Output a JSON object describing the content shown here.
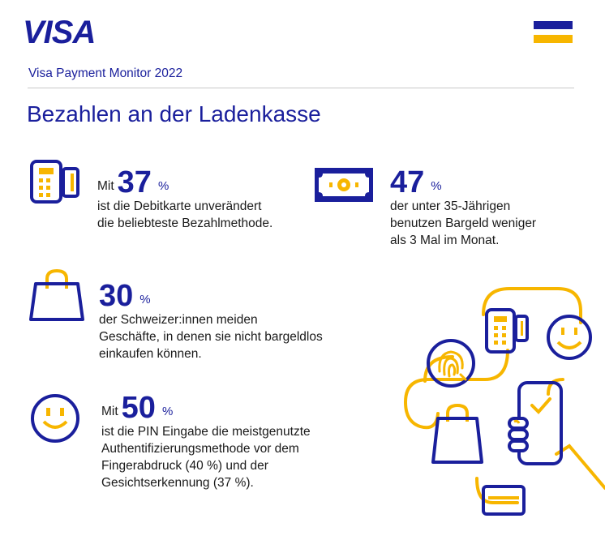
{
  "brand": {
    "logo_text": "VISA",
    "colors": {
      "blue": "#1a1f9c",
      "yellow": "#f7b600",
      "text": "#1a1a1a"
    }
  },
  "header": {
    "subtitle": "Visa Payment Monitor 2022",
    "title": "Bezahlen an der Ladenkasse"
  },
  "stats": [
    {
      "icon": "card-terminal-icon",
      "prefix": "Mit",
      "value": "37",
      "unit": "%",
      "lines": [
        "ist die Debitkarte unverändert",
        "die beliebteste Bezahlmethode."
      ]
    },
    {
      "icon": "cash-banknote-icon",
      "prefix": "",
      "value": "47",
      "unit": "%",
      "lines": [
        "der unter 35-Jährigen",
        "benutzen Bargeld weniger",
        "als 3 Mal im Monat."
      ]
    },
    {
      "icon": "shopping-bag-icon",
      "prefix": "",
      "value": "30",
      "unit": "%",
      "lines": [
        "der Schweizer:innen meiden",
        "Geschäfte, in denen sie nicht bargeldlos",
        "einkaufen können."
      ]
    },
    {
      "icon": "smiley-face-icon",
      "prefix": "Mit",
      "value": "50",
      "unit": "%",
      "lines": [
        "ist die PIN Eingabe die meistgenutzte",
        "Authentifizierungsmethode vor dem",
        "Fingerabdruck (40 %) und der",
        "Gesichtserkennung (37 %)."
      ]
    }
  ]
}
